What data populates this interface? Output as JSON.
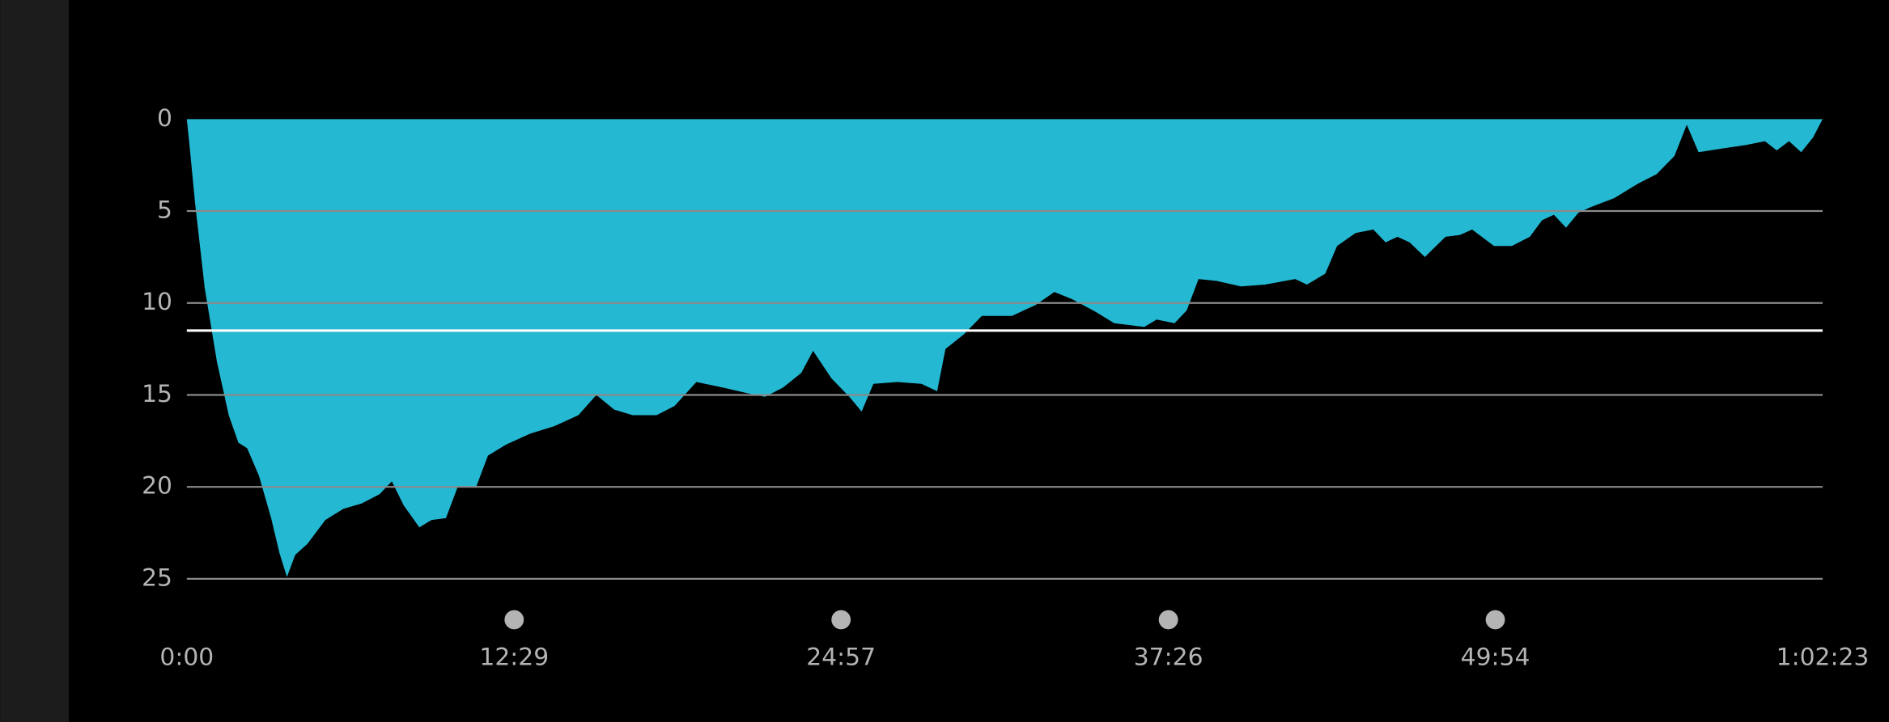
{
  "chart_data": {
    "type": "area",
    "x": [
      0,
      6,
      19,
      41,
      69,
      96,
      118,
      138,
      165,
      193,
      212,
      229,
      248,
      276,
      317,
      358,
      400,
      441,
      469,
      496,
      532,
      560,
      593,
      620,
      662,
      689,
      730,
      786,
      841,
      896,
      937,
      978,
      1020,
      1075,
      1116,
      1166,
      1227,
      1282,
      1323,
      1364,
      1406,
      1433,
      1475,
      1516,
      1544,
      1571,
      1626,
      1681,
      1717,
      1736,
      1778,
      1819,
      1888,
      1943,
      1985,
      2026,
      2081,
      2122,
      2191,
      2219,
      2260,
      2288,
      2315,
      2357,
      2412,
      2467,
      2536,
      2563,
      2605,
      2632,
      2674,
      2715,
      2743,
      2770,
      2798,
      2833,
      2880,
      2913,
      2941,
      2991,
      3032,
      3073,
      3101,
      3128,
      3156,
      3184,
      3211,
      3266,
      3321,
      3363,
      3404,
      3432,
      3459,
      3514,
      3569,
      3611,
      3638,
      3666,
      3694,
      3721,
      3743
    ],
    "values": [
      0,
      1.4,
      4.6,
      9.2,
      13.2,
      16.1,
      17.6,
      17.9,
      19.4,
      21.7,
      23.6,
      24.9,
      23.7,
      23.1,
      21.8,
      21.2,
      20.9,
      20.4,
      19.7,
      21.0,
      22.2,
      21.8,
      21.7,
      20.0,
      20.0,
      18.3,
      17.7,
      17.1,
      16.7,
      16.1,
      15.0,
      15.8,
      16.1,
      16.1,
      15.6,
      14.3,
      14.6,
      14.9,
      15.1,
      14.6,
      13.8,
      12.6,
      14.1,
      15.1,
      15.9,
      14.4,
      14.3,
      14.4,
      14.8,
      12.5,
      11.7,
      10.7,
      10.7,
      10.1,
      9.4,
      9.8,
      10.5,
      11.1,
      11.3,
      10.9,
      11.1,
      10.4,
      8.7,
      8.8,
      9.1,
      9.0,
      8.7,
      9.0,
      8.4,
      6.9,
      6.2,
      6.0,
      6.7,
      6.4,
      6.7,
      7.5,
      6.4,
      6.3,
      6.0,
      6.9,
      6.9,
      6.4,
      5.5,
      5.2,
      5.9,
      5.1,
      4.8,
      4.3,
      3.5,
      3.0,
      2.0,
      0.3,
      1.8,
      1.6,
      1.4,
      1.2,
      1.7,
      1.2,
      1.8,
      1.0,
      0
    ],
    "color": "#24b8d2",
    "xlim": [
      0,
      3743
    ],
    "xticks": [
      {
        "value": 0,
        "label": "0:00"
      },
      {
        "value": 749,
        "label": "12:29"
      },
      {
        "value": 1497,
        "label": "24:57"
      },
      {
        "value": 2246,
        "label": "37:26"
      },
      {
        "value": 2994,
        "label": "49:54"
      },
      {
        "value": 3743,
        "label": "1:02:23"
      }
    ],
    "ylim": [
      0,
      25
    ],
    "y_inverted": true,
    "yticks": [
      0,
      5,
      10,
      15,
      20,
      25
    ],
    "grid": true,
    "reference_line": 11.5
  }
}
